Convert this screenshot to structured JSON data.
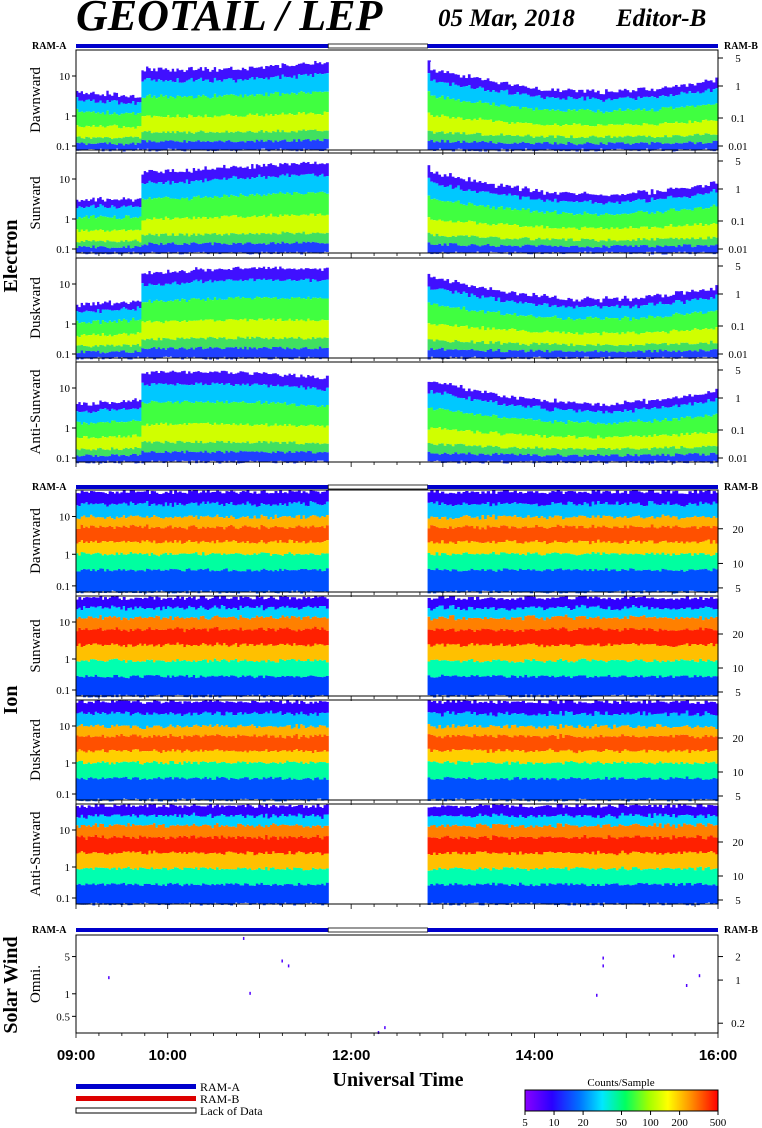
{
  "header": {
    "title": "GEOTAIL / LEP",
    "date": "05 Mar, 2018",
    "editor": "Editor-B"
  },
  "ram_a_label": "RAM-A",
  "ram_b_label": "RAM-B",
  "sections": {
    "electron": "Electron",
    "ion": "Ion",
    "solar_wind": "Solar Wind"
  },
  "panel_labels": {
    "electron": [
      "Dawnward",
      "Sunward",
      "Duskward",
      "Anti-Sunward"
    ],
    "ion": [
      "Dawnward",
      "Sunward",
      "Duskward",
      "Anti-Sunward"
    ],
    "solar_wind": [
      "Omni."
    ]
  },
  "left_ticks": {
    "electron": [
      "10",
      "1",
      "0.1"
    ],
    "ion": [
      "10",
      "1",
      "0.1"
    ],
    "solar_wind": [
      "5",
      "1",
      "0.5"
    ]
  },
  "right_ticks": {
    "electron": [
      "5",
      "1",
      "0.1",
      "0.01"
    ],
    "ion": [
      "20",
      "10",
      "5"
    ],
    "solar_wind": [
      "2",
      "1",
      "0.2"
    ]
  },
  "x_axis": {
    "label": "Universal Time",
    "ticks": [
      "09:00",
      "10:00",
      "12:00",
      "14:00",
      "16:00"
    ]
  },
  "legend": {
    "ram_a": "RAM-A",
    "ram_b": "RAM-B",
    "lack": "Lack of Data"
  },
  "colorbar": {
    "title": "Counts/Sample",
    "ticks": [
      "5",
      "10",
      "20",
      "50",
      "100",
      "200",
      "500"
    ]
  },
  "colors": {
    "ram_a": "#0000cc",
    "ram_b": "#dd0000",
    "lack": "#ffffff"
  },
  "chart_data": {
    "type": "heatmap",
    "x_range": [
      "09:00",
      "16:00"
    ],
    "data_gap": [
      "11:45",
      "12:50"
    ],
    "electron_energy_range_keV": [
      0.08,
      30
    ],
    "ion_energy_range_keV": [
      0.08,
      30
    ],
    "solar_wind_range_keV": [
      0.15,
      8
    ],
    "colorbar_range": [
      5,
      500
    ],
    "colorbar_scale": "log",
    "panels": [
      "Electron Dawnward",
      "Electron Sunward",
      "Electron Duskward",
      "Electron Anti-Sunward",
      "Ion Dawnward",
      "Ion Sunward",
      "Ion Duskward",
      "Ion Anti-Sunward",
      "Solar Wind Omni."
    ]
  }
}
